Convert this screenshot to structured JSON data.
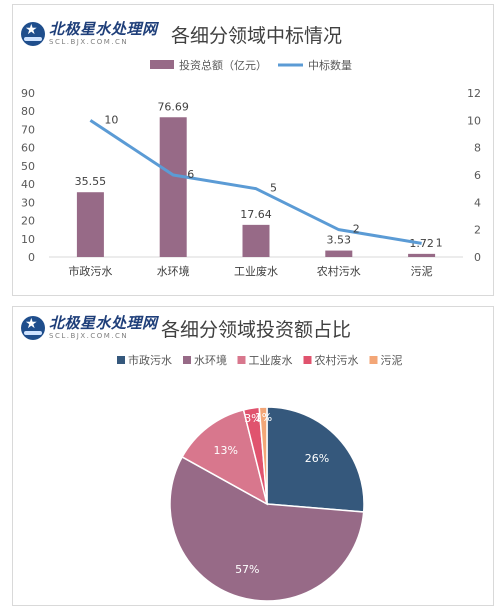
{
  "logo": {
    "name": "北极星水处理网",
    "url": "SCL.BJX.COM.CN"
  },
  "colors": {
    "bar": "#976a87",
    "line": "#5b9bd5",
    "pie": [
      "#35587c",
      "#976a87",
      "#d8778d",
      "#e0536e",
      "#f3a677"
    ]
  },
  "chart_data": [
    {
      "type": "bar",
      "title": "各细分领域中标情况",
      "categories": [
        "市政污水",
        "水环境",
        "工业废水",
        "农村污水",
        "污泥"
      ],
      "series": [
        {
          "name": "投资总额（亿元）",
          "type": "bar",
          "axis": "left",
          "values": [
            35.55,
            76.69,
            17.64,
            3.53,
            1.72
          ]
        },
        {
          "name": "中标数量",
          "type": "line",
          "axis": "right",
          "values": [
            10,
            6,
            5,
            2,
            1
          ]
        }
      ],
      "y_left": {
        "ylim": [
          0,
          90
        ],
        "ticks": [
          0,
          10,
          20,
          30,
          40,
          50,
          60,
          70,
          80,
          90
        ]
      },
      "y_right": {
        "ylim": [
          0,
          12
        ],
        "ticks": [
          0,
          2,
          4,
          6,
          8,
          10,
          12
        ]
      },
      "legend": "top-center",
      "grid": false
    },
    {
      "type": "pie",
      "title": "各细分领域投资额占比",
      "labels": [
        "市政污水",
        "水环境",
        "工业废水",
        "农村污水",
        "污泥"
      ],
      "values": [
        35.55,
        76.69,
        17.64,
        3.53,
        1.72
      ],
      "percent_labels": [
        "26%",
        "57%",
        "13%",
        "3%",
        "1%"
      ],
      "legend": "top-center"
    }
  ]
}
